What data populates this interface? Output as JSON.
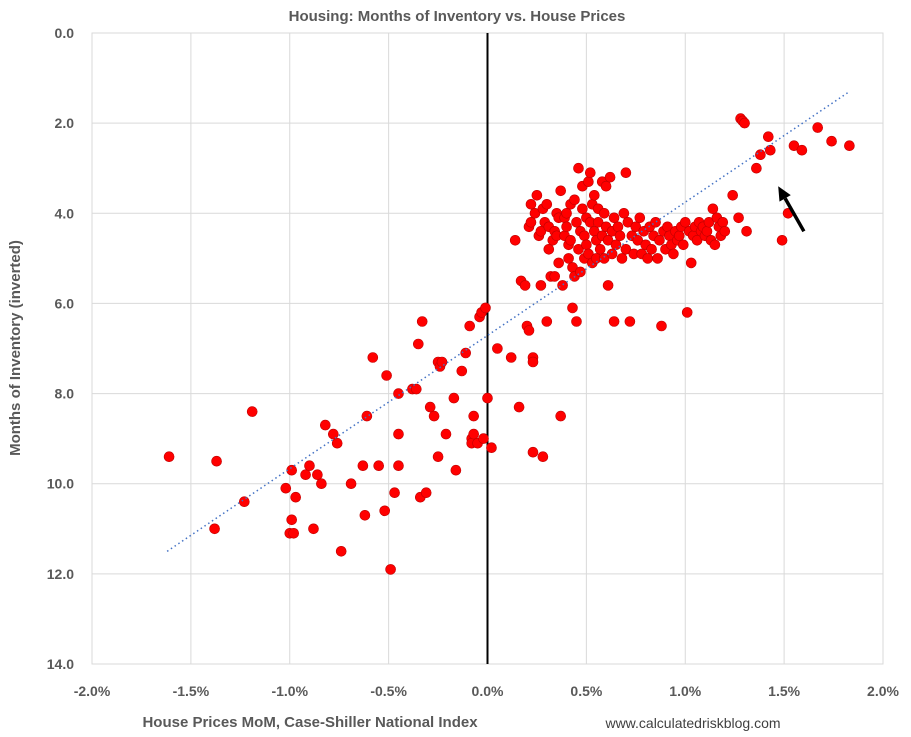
{
  "chart_data": {
    "type": "scatter",
    "title": "Housing: Months of Inventory vs. House Prices",
    "xlabel": "House Prices MoM, Case-Shiller National Index",
    "ylabel": "Months of Inventory (inverted)",
    "source": "www.calculatedriskblog.com",
    "xlim": [
      -0.02,
      0.02
    ],
    "ylim": [
      0,
      14
    ],
    "y_inverted": true,
    "grid": true,
    "x_ticks": [
      -0.02,
      -0.015,
      -0.01,
      -0.005,
      0,
      0.005,
      0.01,
      0.015,
      0.02
    ],
    "x_tick_labels": [
      "-2.0%",
      "-1.5%",
      "-1.0%",
      "-0.5%",
      "0.0%",
      "0.5%",
      "1.0%",
      "1.5%",
      "2.0%"
    ],
    "y_ticks": [
      0,
      2,
      4,
      6,
      8,
      10,
      12,
      14
    ],
    "y_tick_labels": [
      "0.0",
      "2.0",
      "4.0",
      "6.0",
      "8.0",
      "10.0",
      "12.0",
      "14.0"
    ],
    "marker_color": "#ff0000",
    "trend_color": "#4472c4",
    "trendline": {
      "x": [
        -0.0162,
        0.0183
      ],
      "y": [
        11.5,
        1.3
      ]
    },
    "arrow": {
      "from": [
        0.016,
        4.4
      ],
      "to": [
        0.0147,
        3.4
      ]
    },
    "points": [
      [
        -0.0161,
        9.4
      ],
      [
        -0.0137,
        9.5
      ],
      [
        -0.0138,
        11.0
      ],
      [
        -0.0123,
        10.4
      ],
      [
        -0.0119,
        8.4
      ],
      [
        -0.0102,
        10.1
      ],
      [
        -0.01,
        11.1
      ],
      [
        -0.0099,
        9.7
      ],
      [
        -0.0099,
        10.8
      ],
      [
        -0.0098,
        11.1
      ],
      [
        -0.0097,
        10.3
      ],
      [
        -0.0092,
        9.8
      ],
      [
        -0.009,
        9.6
      ],
      [
        -0.0088,
        11.0
      ],
      [
        -0.0086,
        9.8
      ],
      [
        -0.0084,
        10.0
      ],
      [
        -0.0082,
        8.7
      ],
      [
        -0.0078,
        8.9
      ],
      [
        -0.0076,
        9.1
      ],
      [
        -0.0074,
        11.5
      ],
      [
        -0.0069,
        10.0
      ],
      [
        -0.0063,
        9.6
      ],
      [
        -0.0062,
        10.7
      ],
      [
        -0.0061,
        8.5
      ],
      [
        -0.0058,
        7.2
      ],
      [
        -0.0055,
        9.6
      ],
      [
        -0.0052,
        10.6
      ],
      [
        -0.0051,
        7.6
      ],
      [
        -0.0049,
        11.9
      ],
      [
        -0.0047,
        10.2
      ],
      [
        -0.0045,
        9.6
      ],
      [
        -0.0045,
        8.0
      ],
      [
        -0.0045,
        8.9
      ],
      [
        -0.0038,
        7.9
      ],
      [
        -0.0036,
        7.9
      ],
      [
        -0.0035,
        6.9
      ],
      [
        -0.0034,
        10.3
      ],
      [
        -0.0033,
        6.4
      ],
      [
        -0.0031,
        10.2
      ],
      [
        -0.0029,
        8.3
      ],
      [
        -0.0027,
        8.5
      ],
      [
        -0.0025,
        7.3
      ],
      [
        -0.0025,
        9.4
      ],
      [
        -0.0024,
        7.4
      ],
      [
        -0.0023,
        7.3
      ],
      [
        -0.0021,
        8.9
      ],
      [
        -0.0017,
        8.1
      ],
      [
        -0.0016,
        9.7
      ],
      [
        -0.0013,
        7.5
      ],
      [
        -0.0011,
        7.1
      ],
      [
        -0.0009,
        6.5
      ],
      [
        -0.0008,
        9.0
      ],
      [
        -0.0008,
        9.1
      ],
      [
        -0.0007,
        8.9
      ],
      [
        -0.0007,
        8.5
      ],
      [
        -0.0005,
        9.1
      ],
      [
        -0.0004,
        6.3
      ],
      [
        -0.0003,
        6.2
      ],
      [
        -0.0001,
        6.1
      ],
      [
        -0.0002,
        9.0
      ],
      [
        0.0,
        8.1
      ],
      [
        0.0002,
        9.2
      ],
      [
        0.0005,
        7.0
      ],
      [
        0.0012,
        7.2
      ],
      [
        0.0014,
        4.6
      ],
      [
        0.0016,
        8.3
      ],
      [
        0.0017,
        5.5
      ],
      [
        0.0019,
        5.6
      ],
      [
        0.002,
        6.5
      ],
      [
        0.0021,
        6.6
      ],
      [
        0.0021,
        4.3
      ],
      [
        0.0022,
        4.2
      ],
      [
        0.0022,
        3.8
      ],
      [
        0.0023,
        9.3
      ],
      [
        0.0023,
        7.2
      ],
      [
        0.0023,
        7.3
      ],
      [
        0.0024,
        4.0
      ],
      [
        0.0025,
        3.6
      ],
      [
        0.0026,
        4.5
      ],
      [
        0.0027,
        5.6
      ],
      [
        0.0027,
        4.4
      ],
      [
        0.0028,
        3.9
      ],
      [
        0.0028,
        9.4
      ],
      [
        0.0029,
        4.2
      ],
      [
        0.003,
        6.4
      ],
      [
        0.003,
        3.8
      ],
      [
        0.0031,
        4.3
      ],
      [
        0.0031,
        4.8
      ],
      [
        0.0032,
        5.4
      ],
      [
        0.0033,
        4.6
      ],
      [
        0.0034,
        4.4
      ],
      [
        0.0034,
        5.4
      ],
      [
        0.0035,
        4.0
      ],
      [
        0.0035,
        4.5
      ],
      [
        0.0036,
        4.1
      ],
      [
        0.0036,
        5.1
      ],
      [
        0.0037,
        8.5
      ],
      [
        0.0037,
        3.5
      ],
      [
        0.0038,
        5.6
      ],
      [
        0.0039,
        4.1
      ],
      [
        0.0039,
        4.5
      ],
      [
        0.004,
        4.0
      ],
      [
        0.004,
        4.3
      ],
      [
        0.0041,
        5.0
      ],
      [
        0.0041,
        4.7
      ],
      [
        0.0042,
        3.8
      ],
      [
        0.0042,
        4.6
      ],
      [
        0.0043,
        6.1
      ],
      [
        0.0043,
        5.2
      ],
      [
        0.0044,
        3.7
      ],
      [
        0.0044,
        5.4
      ],
      [
        0.0045,
        6.4
      ],
      [
        0.0045,
        4.2
      ],
      [
        0.0046,
        4.8
      ],
      [
        0.0046,
        3.0
      ],
      [
        0.0047,
        5.3
      ],
      [
        0.0047,
        4.4
      ],
      [
        0.0048,
        3.9
      ],
      [
        0.0048,
        3.4
      ],
      [
        0.0049,
        4.5
      ],
      [
        0.0049,
        5.0
      ],
      [
        0.005,
        4.1
      ],
      [
        0.005,
        4.7
      ],
      [
        0.0051,
        3.3
      ],
      [
        0.0051,
        4.9
      ],
      [
        0.0052,
        3.1
      ],
      [
        0.0052,
        4.2
      ],
      [
        0.0053,
        3.8
      ],
      [
        0.0053,
        5.1
      ],
      [
        0.0054,
        4.4
      ],
      [
        0.0054,
        3.6
      ],
      [
        0.0055,
        4.6
      ],
      [
        0.0055,
        5.0
      ],
      [
        0.0056,
        4.2
      ],
      [
        0.0056,
        3.9
      ],
      [
        0.0057,
        4.8
      ],
      [
        0.0058,
        3.3
      ],
      [
        0.0058,
        4.5
      ],
      [
        0.0059,
        4.0
      ],
      [
        0.0059,
        5.0
      ],
      [
        0.006,
        3.4
      ],
      [
        0.006,
        4.3
      ],
      [
        0.0061,
        5.6
      ],
      [
        0.0061,
        4.6
      ],
      [
        0.0062,
        3.2
      ],
      [
        0.0063,
        4.4
      ],
      [
        0.0063,
        4.9
      ],
      [
        0.0064,
        6.4
      ],
      [
        0.0064,
        4.1
      ],
      [
        0.0065,
        4.7
      ],
      [
        0.0066,
        4.3
      ],
      [
        0.0067,
        4.5
      ],
      [
        0.0068,
        5.0
      ],
      [
        0.0069,
        4.0
      ],
      [
        0.007,
        3.1
      ],
      [
        0.007,
        4.8
      ],
      [
        0.0071,
        4.2
      ],
      [
        0.0072,
        6.4
      ],
      [
        0.0073,
        4.5
      ],
      [
        0.0074,
        4.9
      ],
      [
        0.0075,
        4.3
      ],
      [
        0.0076,
        4.6
      ],
      [
        0.0077,
        4.1
      ],
      [
        0.0078,
        4.9
      ],
      [
        0.0079,
        4.4
      ],
      [
        0.008,
        4.7
      ],
      [
        0.0081,
        5.0
      ],
      [
        0.0082,
        4.3
      ],
      [
        0.0083,
        4.8
      ],
      [
        0.0084,
        4.5
      ],
      [
        0.0085,
        4.2
      ],
      [
        0.0086,
        5.0
      ],
      [
        0.0087,
        4.6
      ],
      [
        0.0088,
        6.5
      ],
      [
        0.0089,
        4.4
      ],
      [
        0.009,
        4.8
      ],
      [
        0.0091,
        4.3
      ],
      [
        0.0092,
        4.5
      ],
      [
        0.0093,
        4.7
      ],
      [
        0.0094,
        4.9
      ],
      [
        0.0095,
        4.4
      ],
      [
        0.0096,
        4.6
      ],
      [
        0.0097,
        4.5
      ],
      [
        0.0098,
        4.3
      ],
      [
        0.0099,
        4.7
      ],
      [
        0.01,
        4.2
      ],
      [
        0.0101,
        6.2
      ],
      [
        0.0102,
        4.4
      ],
      [
        0.0103,
        5.1
      ],
      [
        0.0104,
        4.5
      ],
      [
        0.0105,
        4.3
      ],
      [
        0.0106,
        4.6
      ],
      [
        0.0107,
        4.2
      ],
      [
        0.0108,
        4.4
      ],
      [
        0.0109,
        4.3
      ],
      [
        0.011,
        4.5
      ],
      [
        0.0111,
        4.4
      ],
      [
        0.0112,
        4.2
      ],
      [
        0.0113,
        4.6
      ],
      [
        0.0114,
        3.9
      ],
      [
        0.0115,
        4.7
      ],
      [
        0.0116,
        4.1
      ],
      [
        0.0117,
        4.3
      ],
      [
        0.0118,
        4.5
      ],
      [
        0.0119,
        4.2
      ],
      [
        0.012,
        4.4
      ],
      [
        0.0124,
        3.6
      ],
      [
        0.0127,
        4.1
      ],
      [
        0.0128,
        1.9
      ],
      [
        0.0129,
        1.95
      ],
      [
        0.013,
        2.0
      ],
      [
        0.0131,
        4.4
      ],
      [
        0.0136,
        3.0
      ],
      [
        0.0138,
        2.7
      ],
      [
        0.0142,
        2.3
      ],
      [
        0.0143,
        2.6
      ],
      [
        0.0149,
        4.6
      ],
      [
        0.0152,
        4.0
      ],
      [
        0.0155,
        2.5
      ],
      [
        0.0159,
        2.6
      ],
      [
        0.0167,
        2.1
      ],
      [
        0.0174,
        2.4
      ],
      [
        0.0183,
        2.5
      ]
    ]
  }
}
